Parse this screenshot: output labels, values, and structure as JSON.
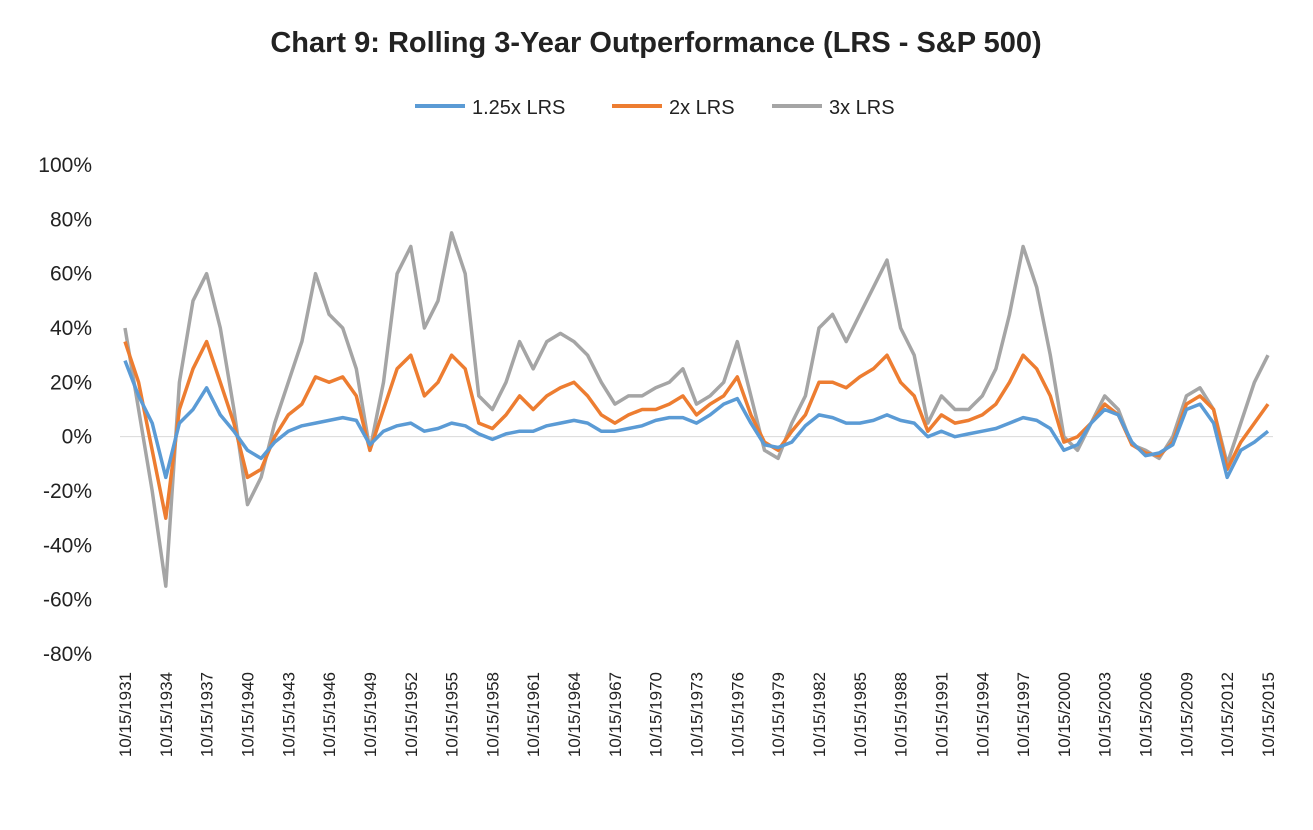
{
  "chart_data": {
    "type": "line",
    "title": "Chart 9: Rolling 3-Year Outperformance (LRS - S&P 500)",
    "x": [
      "10/15/1931",
      "10/15/1932",
      "10/15/1933",
      "10/15/1934",
      "10/15/1935",
      "10/15/1936",
      "10/15/1937",
      "10/15/1938",
      "10/15/1939",
      "10/15/1940",
      "10/15/1941",
      "10/15/1942",
      "10/15/1943",
      "10/15/1944",
      "10/15/1945",
      "10/15/1946",
      "10/15/1947",
      "10/15/1948",
      "10/15/1949",
      "10/15/1950",
      "10/15/1951",
      "10/15/1952",
      "10/15/1953",
      "10/15/1954",
      "10/15/1955",
      "10/15/1956",
      "10/15/1957",
      "10/15/1958",
      "10/15/1959",
      "10/15/1960",
      "10/15/1961",
      "10/15/1962",
      "10/15/1963",
      "10/15/1964",
      "10/15/1965",
      "10/15/1966",
      "10/15/1967",
      "10/15/1968",
      "10/15/1969",
      "10/15/1970",
      "10/15/1971",
      "10/15/1972",
      "10/15/1973",
      "10/15/1974",
      "10/15/1975",
      "10/15/1976",
      "10/15/1977",
      "10/15/1978",
      "10/15/1979",
      "10/15/1980",
      "10/15/1981",
      "10/15/1982",
      "10/15/1983",
      "10/15/1984",
      "10/15/1985",
      "10/15/1986",
      "10/15/1987",
      "10/15/1988",
      "10/15/1989",
      "10/15/1990",
      "10/15/1991",
      "10/15/1992",
      "10/15/1993",
      "10/15/1994",
      "10/15/1995",
      "10/15/1996",
      "10/15/1997",
      "10/15/1998",
      "10/15/1999",
      "10/15/2000",
      "10/15/2001",
      "10/15/2002",
      "10/15/2003",
      "10/15/2004",
      "10/15/2005",
      "10/15/2006",
      "10/15/2007",
      "10/15/2008",
      "10/15/2009",
      "10/15/2010",
      "10/15/2011",
      "10/15/2012",
      "10/15/2013",
      "10/15/2014",
      "10/15/2015"
    ],
    "xtick_every": 3,
    "series": [
      {
        "name": "1.25x LRS",
        "color": "#5b9bd5",
        "values": [
          28,
          15,
          5,
          -15,
          5,
          10,
          18,
          8,
          2,
          -5,
          -8,
          -2,
          2,
          4,
          5,
          6,
          7,
          6,
          -3,
          2,
          4,
          5,
          2,
          3,
          5,
          4,
          1,
          -1,
          1,
          2,
          2,
          4,
          5,
          6,
          5,
          2,
          2,
          3,
          4,
          6,
          7,
          7,
          5,
          8,
          12,
          14,
          5,
          -3,
          -4,
          -2,
          4,
          8,
          7,
          5,
          5,
          6,
          8,
          6,
          5,
          0,
          2,
          0,
          1,
          2,
          3,
          5,
          7,
          6,
          3,
          -5,
          -3,
          5,
          10,
          8,
          -2,
          -7,
          -6,
          -3,
          10,
          12,
          5,
          -15,
          -5,
          -2,
          2
        ]
      },
      {
        "name": "2x LRS",
        "color": "#ed7d31",
        "values": [
          35,
          20,
          -5,
          -30,
          10,
          25,
          35,
          20,
          5,
          -15,
          -12,
          0,
          8,
          12,
          22,
          20,
          22,
          15,
          -5,
          10,
          25,
          30,
          15,
          20,
          30,
          25,
          5,
          3,
          8,
          15,
          10,
          15,
          18,
          20,
          15,
          8,
          5,
          8,
          10,
          10,
          12,
          15,
          8,
          12,
          15,
          22,
          8,
          -2,
          -5,
          2,
          8,
          20,
          20,
          18,
          22,
          25,
          30,
          20,
          15,
          2,
          8,
          5,
          6,
          8,
          12,
          20,
          30,
          25,
          15,
          -2,
          0,
          5,
          12,
          8,
          -3,
          -6,
          -7,
          -2,
          12,
          15,
          10,
          -12,
          -2,
          5,
          12
        ]
      },
      {
        "name": "3x LRS",
        "color": "#a5a5a5",
        "values": [
          40,
          10,
          -20,
          -55,
          20,
          50,
          60,
          40,
          10,
          -25,
          -15,
          5,
          20,
          35,
          60,
          45,
          40,
          25,
          -5,
          20,
          60,
          70,
          40,
          50,
          75,
          60,
          15,
          10,
          20,
          35,
          25,
          35,
          38,
          35,
          30,
          20,
          12,
          15,
          15,
          18,
          20,
          25,
          12,
          15,
          20,
          35,
          15,
          -5,
          -8,
          5,
          15,
          40,
          45,
          35,
          45,
          55,
          65,
          40,
          30,
          5,
          15,
          10,
          10,
          15,
          25,
          45,
          70,
          55,
          30,
          0,
          -5,
          5,
          15,
          10,
          -3,
          -5,
          -8,
          0,
          15,
          18,
          10,
          -10,
          5,
          20,
          30
        ]
      }
    ],
    "ylim": [
      -80,
      100
    ],
    "yticks": [
      {
        "value": -80,
        "label": "-80%"
      },
      {
        "value": -60,
        "label": "-60%"
      },
      {
        "value": -40,
        "label": "-40%"
      },
      {
        "value": -20,
        "label": "-20%"
      },
      {
        "value": 0,
        "label": "0%"
      },
      {
        "value": 20,
        "label": "20%"
      },
      {
        "value": 40,
        "label": "40%"
      },
      {
        "value": 60,
        "label": "60%"
      },
      {
        "value": 80,
        "label": "80%"
      },
      {
        "value": 100,
        "label": "100%"
      }
    ],
    "legend": "top"
  }
}
